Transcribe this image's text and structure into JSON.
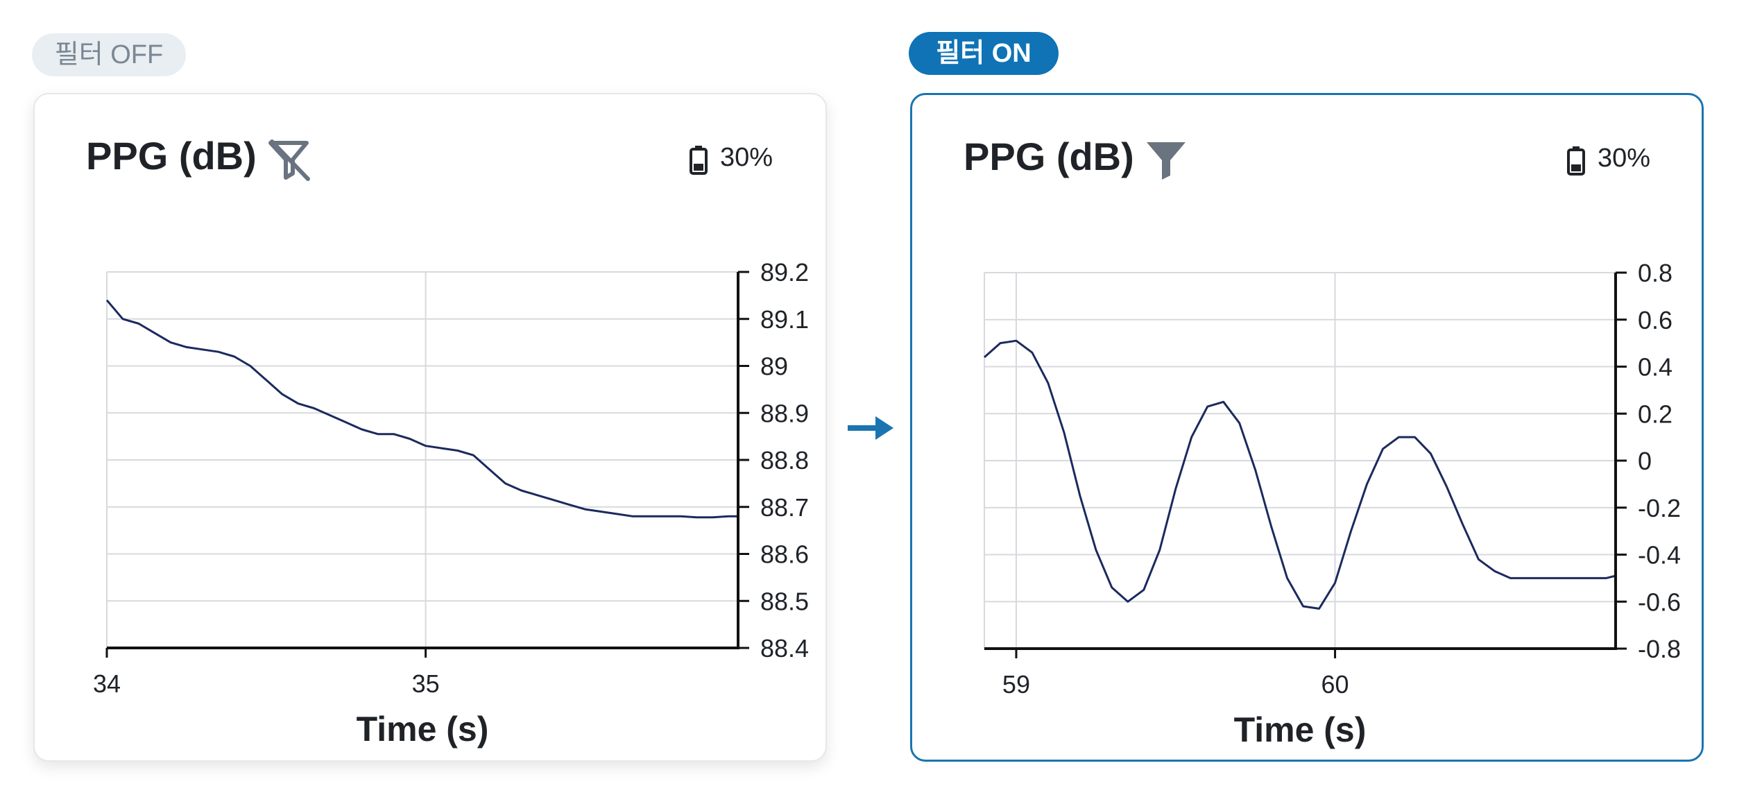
{
  "labels": {
    "off": "필터 OFF",
    "on": "필터 ON"
  },
  "colors": {
    "line": "#1b2a5e",
    "accent": "#1a74b0",
    "grid": "#d7d9dc",
    "axis": "#111111"
  },
  "cards": [
    {
      "title": "PPG (dB)",
      "filter_icon": "filter-off-icon",
      "battery_icon": "battery-icon",
      "battery": "30%"
    },
    {
      "title": "PPG (dB)",
      "filter_icon": "filter-icon",
      "battery_icon": "battery-icon",
      "battery": "30%"
    }
  ],
  "arrow_icon": "arrow-right-icon",
  "chart_data": [
    {
      "type": "line",
      "title": "PPG (dB)",
      "xlabel": "Time (s)",
      "ylabel": "",
      "xlim": [
        34,
        35.98
      ],
      "ylim": [
        88.4,
        89.2
      ],
      "xticks": [
        34,
        35
      ],
      "yticks": [
        89.2,
        89.1,
        89,
        88.9,
        88.8,
        88.7,
        88.6,
        88.5,
        88.4
      ],
      "ytick_labels": [
        "89.2",
        "89.1",
        "89",
        "88.9",
        "88.8",
        "88.7",
        "88.6",
        "88.5",
        "88.4"
      ],
      "y_axis_side": "right",
      "grid": true,
      "series": [
        {
          "x": [
            34.0,
            34.05,
            34.1,
            34.15,
            34.2,
            34.25,
            34.3,
            34.35,
            34.4,
            34.45,
            34.5,
            34.55,
            34.6,
            34.65,
            34.7,
            34.75,
            34.8,
            34.85,
            34.9,
            34.95,
            35.0,
            35.05,
            35.1,
            35.15,
            35.2,
            35.25,
            35.3,
            35.35,
            35.4,
            35.45,
            35.5,
            35.55,
            35.6,
            35.65,
            35.7,
            35.75,
            35.8,
            35.85,
            35.9,
            35.95,
            35.98
          ],
          "y": [
            89.14,
            89.1,
            89.09,
            89.07,
            89.05,
            89.04,
            89.035,
            89.03,
            89.02,
            89.0,
            88.97,
            88.94,
            88.92,
            88.91,
            88.895,
            88.88,
            88.865,
            88.855,
            88.855,
            88.845,
            88.83,
            88.825,
            88.82,
            88.81,
            88.78,
            88.75,
            88.735,
            88.725,
            88.715,
            88.705,
            88.695,
            88.69,
            88.685,
            88.68,
            88.68,
            88.68,
            88.68,
            88.678,
            88.678,
            88.68,
            88.68
          ]
        }
      ]
    },
    {
      "type": "line",
      "title": "PPG (dB)",
      "xlabel": "Time (s)",
      "ylabel": "",
      "xlim": [
        58.9,
        60.88
      ],
      "ylim": [
        -0.8,
        0.8
      ],
      "xticks": [
        59,
        60
      ],
      "yticks": [
        0.8,
        0.6,
        0.4,
        0.2,
        0,
        -0.2,
        -0.4,
        -0.6,
        -0.8
      ],
      "ytick_labels": [
        "0.8",
        "0.6",
        "0.4",
        "0.2",
        "0",
        "-0.2",
        "-0.4",
        "-0.6",
        "-0.8"
      ],
      "y_axis_side": "right",
      "grid": true,
      "series": [
        {
          "x": [
            58.9,
            58.95,
            59.0,
            59.05,
            59.1,
            59.15,
            59.2,
            59.25,
            59.3,
            59.35,
            59.4,
            59.45,
            59.5,
            59.55,
            59.6,
            59.65,
            59.7,
            59.75,
            59.8,
            59.85,
            59.9,
            59.95,
            60.0,
            60.05,
            60.1,
            60.15,
            60.2,
            60.25,
            60.3,
            60.35,
            60.4,
            60.45,
            60.5,
            60.55,
            60.6,
            60.65,
            60.7,
            60.75,
            60.8,
            60.85,
            60.88
          ],
          "y": [
            0.44,
            0.5,
            0.51,
            0.46,
            0.33,
            0.12,
            -0.15,
            -0.38,
            -0.54,
            -0.6,
            -0.55,
            -0.38,
            -0.12,
            0.1,
            0.23,
            0.25,
            0.16,
            -0.04,
            -0.28,
            -0.5,
            -0.62,
            -0.63,
            -0.52,
            -0.3,
            -0.1,
            0.05,
            0.1,
            0.1,
            0.03,
            -0.11,
            -0.27,
            -0.42,
            -0.47,
            -0.5,
            -0.5,
            -0.5,
            -0.5,
            -0.5,
            -0.5,
            -0.5,
            -0.49
          ]
        }
      ]
    }
  ]
}
